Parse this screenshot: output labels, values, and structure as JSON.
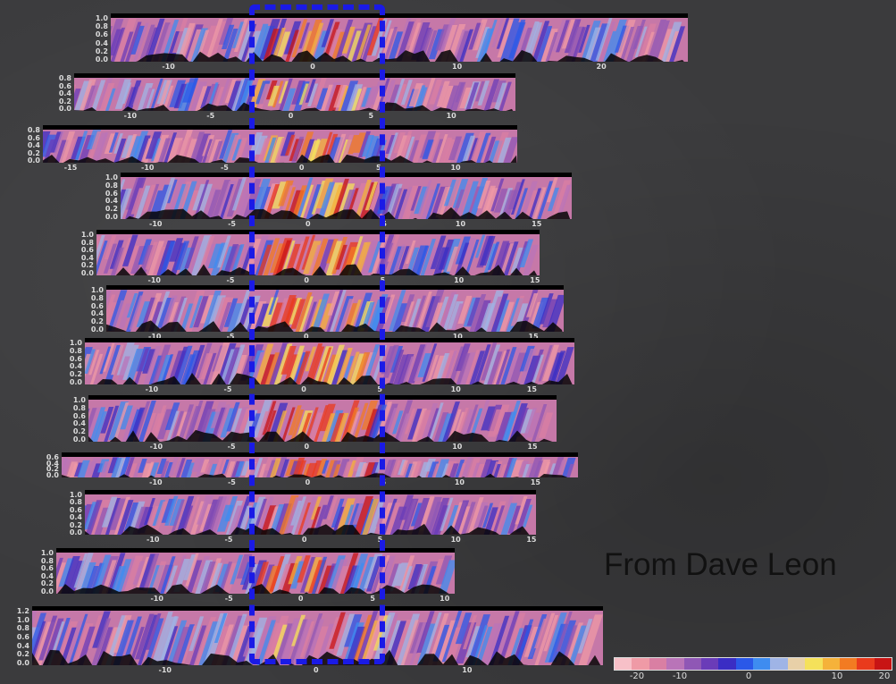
{
  "credit": "From Dave Leon",
  "highlight_color": "#1a1ae6",
  "colorbar": {
    "colors": [
      "#f7c0c8",
      "#ef9aa6",
      "#d97fa3",
      "#b974b8",
      "#8f57b5",
      "#6a3cb8",
      "#3a2dc4",
      "#2a58e8",
      "#3e8cf0",
      "#9fb4e6",
      "#e8d0a8",
      "#f5e15a",
      "#f5b23a",
      "#f27b22",
      "#e93a1c",
      "#c81414"
    ],
    "labels": [
      "-20",
      "-10",
      "0",
      "10",
      "20"
    ]
  },
  "panels": [
    {
      "yticks": [
        "1.0",
        "0.8",
        "0.6",
        "0.4",
        "0.2",
        "0.0"
      ],
      "xticks": [
        "-10",
        "0",
        "10",
        "20"
      ],
      "hot": 0.55
    },
    {
      "yticks": [
        "0.8",
        "0.6",
        "0.4",
        "0.2",
        "0.0"
      ],
      "xticks": [
        "-10",
        "-5",
        "0",
        "5",
        "10"
      ],
      "hot": 0.45
    },
    {
      "yticks": [
        "0.8",
        "0.6",
        "0.4",
        "0.2",
        "0.0"
      ],
      "xticks": [
        "-15",
        "-10",
        "-5",
        "0",
        "5",
        "10"
      ],
      "hot": 0.5
    },
    {
      "yticks": [
        "1.0",
        "0.8",
        "0.6",
        "0.4",
        "0.2",
        "0.0"
      ],
      "xticks": [
        "-10",
        "-5",
        "0",
        "5",
        "10",
        "15"
      ],
      "hot": 0.65
    },
    {
      "yticks": [
        "1.0",
        "0.8",
        "0.6",
        "0.4",
        "0.2",
        "0.0"
      ],
      "xticks": [
        "-10",
        "-5",
        "0",
        "5",
        "10",
        "15"
      ],
      "hot": 0.85
    },
    {
      "yticks": [
        "1.0",
        "0.8",
        "0.6",
        "0.4",
        "0.2",
        "0.0"
      ],
      "xticks": [
        "-10",
        "-5",
        "0",
        "5",
        "10",
        "15"
      ],
      "hot": 0.6
    },
    {
      "yticks": [
        "1.0",
        "0.8",
        "0.6",
        "0.4",
        "0.2",
        "0.0"
      ],
      "xticks": [
        "-10",
        "-5",
        "0",
        "5",
        "10",
        "15"
      ],
      "hot": 0.8
    },
    {
      "yticks": [
        "1.0",
        "0.8",
        "0.6",
        "0.4",
        "0.2",
        "0.0"
      ],
      "xticks": [
        "-10",
        "-5",
        "0",
        "5",
        "10",
        "15"
      ],
      "hot": 0.7
    },
    {
      "yticks": [
        "0.6",
        "0.4",
        "0.2",
        "0.0"
      ],
      "xticks": [
        "-10",
        "-5",
        "0",
        "5",
        "10",
        "15"
      ],
      "hot": 0.5
    },
    {
      "yticks": [
        "1.0",
        "0.8",
        "0.6",
        "0.4",
        "0.2",
        "0.0"
      ],
      "xticks": [
        "-10",
        "-5",
        "0",
        "5",
        "10",
        "15"
      ],
      "hot": 0.35
    },
    {
      "yticks": [
        "1.0",
        "0.8",
        "0.6",
        "0.4",
        "0.2",
        "0.0"
      ],
      "xticks": [
        "-10",
        "-5",
        "0",
        "5",
        "10"
      ],
      "hot": 0.3
    },
    {
      "yticks": [
        "1.2",
        "1.0",
        "0.8",
        "0.6",
        "0.4",
        "0.2",
        "0.0"
      ],
      "xticks": [
        "-10",
        "0",
        "10"
      ],
      "hot": 0.3
    }
  ]
}
